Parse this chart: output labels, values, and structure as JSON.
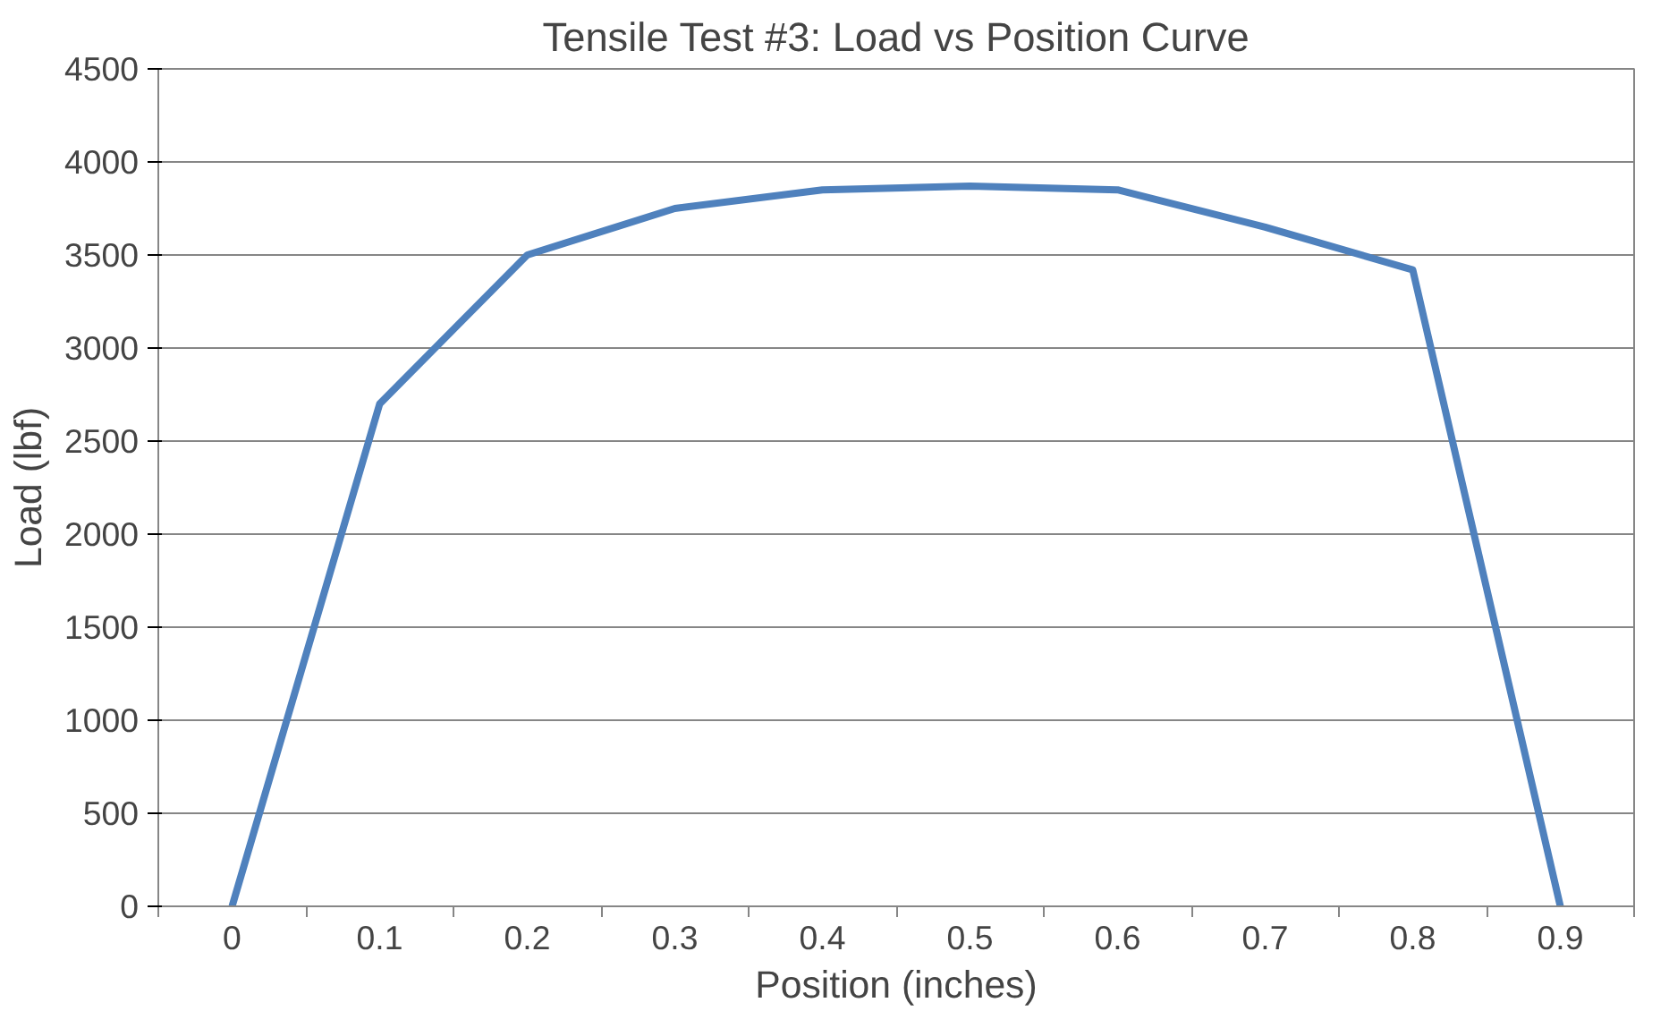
{
  "chart_data": {
    "type": "line",
    "title": "Tensile Test #3: Load vs Position Curve",
    "xlabel": "Position (inches)",
    "ylabel": "Load (lbf)",
    "categories": [
      "0",
      "0.1",
      "0.2",
      "0.3",
      "0.4",
      "0.5",
      "0.6",
      "0.7",
      "0.8",
      "0.9"
    ],
    "series": [
      {
        "color": "#4f81bd",
        "values": [
          0,
          2700,
          3500,
          3750,
          3850,
          3870,
          3850,
          3650,
          3420,
          0
        ]
      }
    ],
    "ylim": [
      0,
      4500
    ],
    "yticks": [
      0,
      500,
      1000,
      1500,
      2000,
      2500,
      3000,
      3500,
      4000,
      4500
    ],
    "grid": "y",
    "marker": "none",
    "line_style": "solid"
  }
}
